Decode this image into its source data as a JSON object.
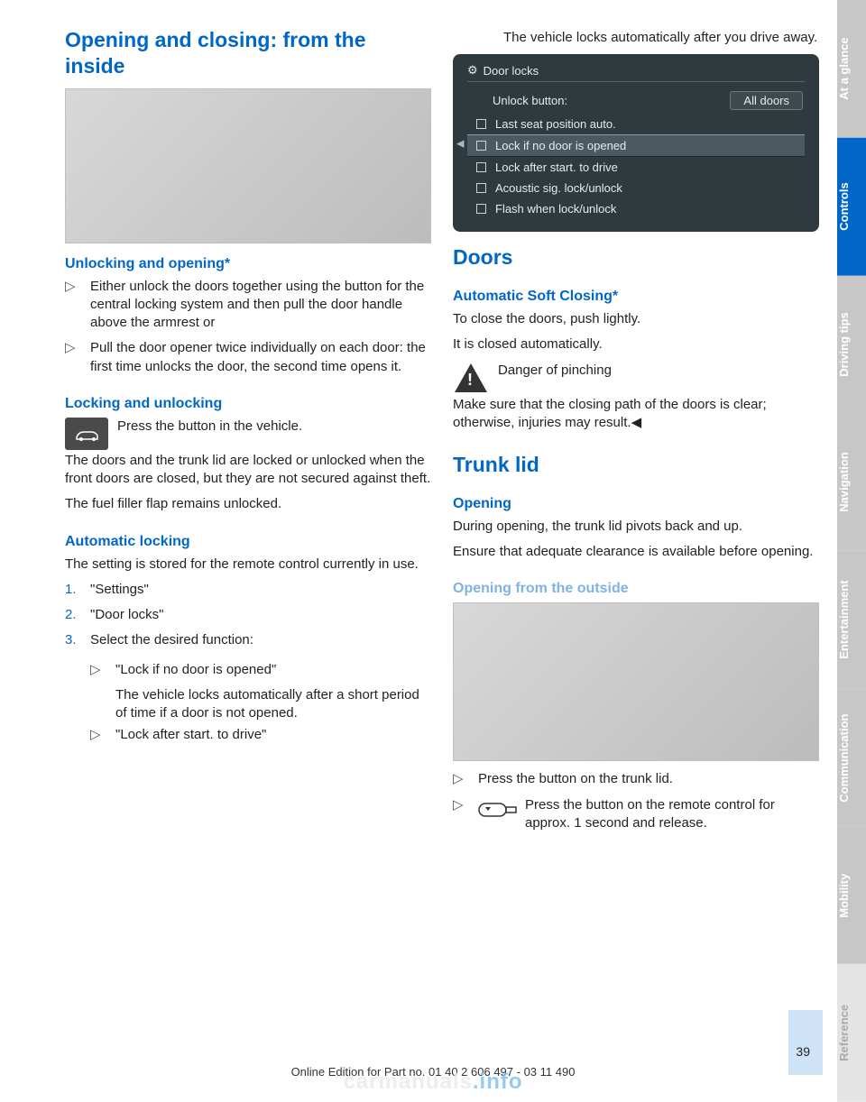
{
  "colors": {
    "heading": "#0067c8",
    "heading_light": "#7fb3e6",
    "tab_active_bg": "#0067c8",
    "tab_active_fg": "#ffffff",
    "tab_inactive_bg": "#c7c7c7",
    "tab_inactive_fg": "#ffffff",
    "tab_ref_bg": "#e4e4e4",
    "tab_ref_fg": "#aaaaaa",
    "idrive_bg": "#2e3a3d",
    "pagenum_bar": "#cfe3f7"
  },
  "left": {
    "h1": "Opening and closing: from the inside",
    "img1_h": 172,
    "h2_unlock": "Unlocking and opening*",
    "bl1": [
      "Either unlock the doors together using the button for the central locking system and then pull the door handle above the armrest or",
      "Pull the door opener twice individually on each door: the first time unlocks the door, the second time opens it."
    ],
    "h2_lock": "Locking and unlocking",
    "lock_icon_text": "Press the button in the vehicle.",
    "lock_p2": "The doors and the trunk lid are locked or unlocked when the front doors are closed, but they are not secured against theft.",
    "lock_p3": "The fuel filler flap remains unlocked.",
    "h2_auto": "Automatic locking",
    "auto_p1": "The setting is stored for the remote control cur­rently in use.",
    "steps": [
      "\"Settings\"",
      "\"Door locks\"",
      "Select the desired function:"
    ],
    "sub1_label": "\"Lock if no door is opened\"",
    "sub1_text": "The vehicle locks automatically after a short period of time if a door is not opened.",
    "sub2_label": "\"Lock after start. to drive\""
  },
  "right": {
    "top_p": "The vehicle locks automatically after you drive away.",
    "idrive": {
      "title": "Door locks",
      "row_label": "Unlock button:",
      "row_val": "All doors",
      "items": [
        "Last seat position auto.",
        "Lock if no door is opened",
        "Lock after start. to drive",
        "Acoustic sig. lock/unlock",
        "Flash when lock/unlock"
      ],
      "highlight_index": 1
    },
    "h1_doors": "Doors",
    "h2_soft": "Automatic Soft Closing*",
    "soft_p1": "To close the doors, push lightly.",
    "soft_p2": "It is closed automatically.",
    "warn_l1": "Danger of pinching",
    "warn_l2": "Make sure that the closing path of the doors is clear; otherwise, injuries may result.◀",
    "h1_trunk": "Trunk lid",
    "h2_open": "Opening",
    "open_p1": "During opening, the trunk lid pivots back and up.",
    "open_p2": "Ensure that adequate clearance is available be­fore opening.",
    "h2_outside": "Opening from the outside",
    "img2_h": 176,
    "bl2a": "Press the button on the trunk lid.",
    "bl2b": "Press the button on the remote control for approx. 1 second and re­lease."
  },
  "tabs": [
    {
      "label": "At a glance",
      "active": false
    },
    {
      "label": "Controls",
      "active": true
    },
    {
      "label": "Driving tips",
      "active": false
    },
    {
      "label": "Navigation",
      "active": false
    },
    {
      "label": "Entertainment",
      "active": false
    },
    {
      "label": "Communication",
      "active": false
    },
    {
      "label": "Mobility",
      "active": false
    },
    {
      "label": "Reference",
      "active": false,
      "ref": true
    }
  ],
  "page_num": "39",
  "footer": "Online Edition for Part no. 01 40 2 606 497 - 03 11 490",
  "watermark_a": "carmanuals",
  "watermark_b": ".info"
}
